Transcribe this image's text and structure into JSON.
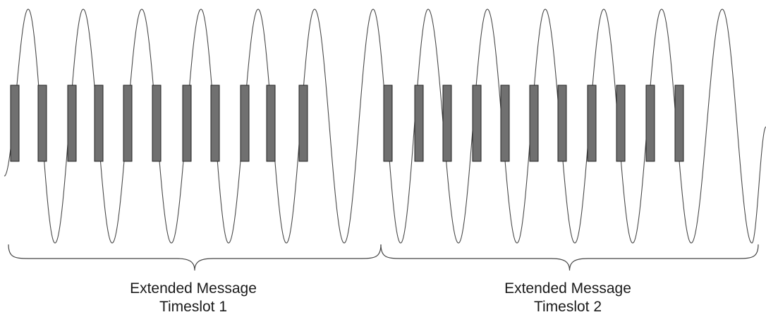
{
  "timeslots": [
    {
      "line1": "Extended Message",
      "line2": "Timeslot 1",
      "bursts": 11
    },
    {
      "line1": "Extended Message",
      "line2": "Timeslot 2",
      "bursts": 11
    }
  ],
  "colors": {
    "waveform": "#4a4a4a",
    "burst_fill": "#707070",
    "burst_stroke": "#222222",
    "brace": "#444444"
  }
}
